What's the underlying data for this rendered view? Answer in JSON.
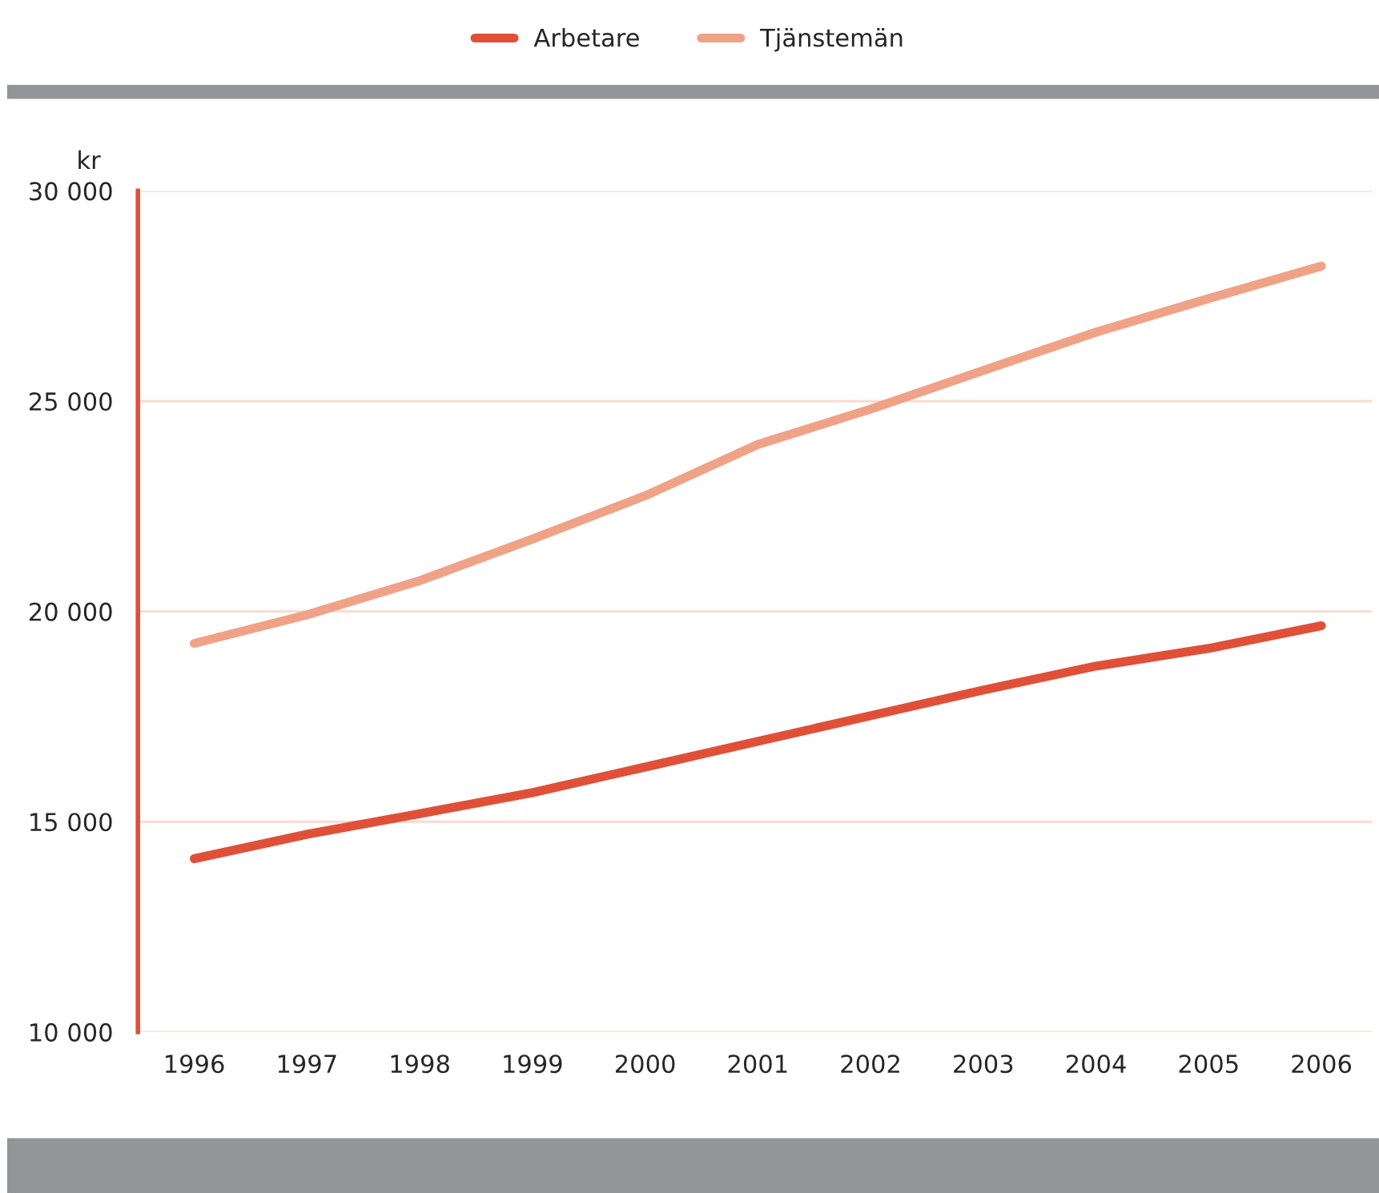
{
  "chart_data": {
    "type": "line",
    "ylabel": "kr",
    "categories": [
      "1996",
      "1997",
      "1998",
      "1999",
      "2000",
      "2001",
      "2002",
      "2003",
      "2004",
      "2005",
      "2006"
    ],
    "series": [
      {
        "name": "Arbetare",
        "color": "#e05038",
        "values": [
          14120,
          14700,
          15190,
          15690,
          16300,
          16910,
          17520,
          18130,
          18700,
          19120,
          19660
        ]
      },
      {
        "name": "Tjänstemän",
        "color": "#f0a287",
        "values": [
          19240,
          19920,
          20730,
          21720,
          22750,
          23970,
          24810,
          25730,
          26640,
          27440,
          28210
        ]
      }
    ],
    "ylim": [
      10000,
      30000
    ],
    "yticks": [
      {
        "value": 10000,
        "label": "10 000"
      },
      {
        "value": 15000,
        "label": "15 000"
      },
      {
        "value": 20000,
        "label": "20 000"
      },
      {
        "value": 25000,
        "label": "25 000"
      },
      {
        "value": 30000,
        "label": "30 000"
      }
    ],
    "grid": "y",
    "legend": "top",
    "marker": "none",
    "line_style": "solid"
  }
}
